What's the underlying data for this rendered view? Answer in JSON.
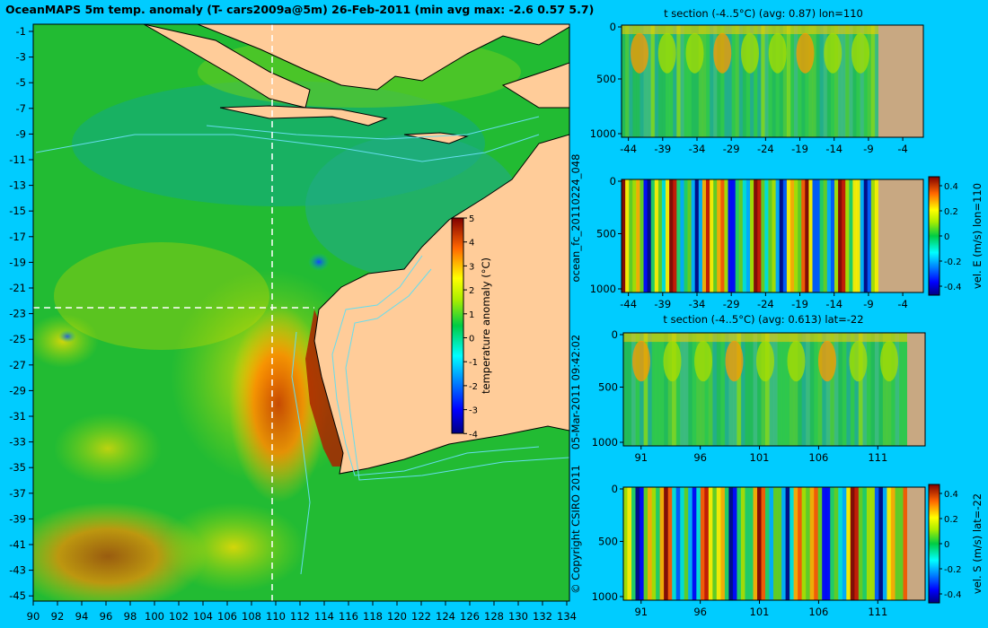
{
  "page": {
    "background": "#00ccff",
    "land_color": "#ffcc99",
    "section_land_color": "#c8a882"
  },
  "map": {
    "title": "OceanMAPS 5m temp. anomaly (T- cars2009a@5m) 26-Feb-2011 (min avg max: -2.6 0.57 5.7)",
    "lon_ticks": [
      "90",
      "92",
      "94",
      "96",
      "98",
      "100",
      "102",
      "104",
      "106",
      "108",
      "110",
      "112",
      "114",
      "116",
      "118",
      "120",
      "122",
      "124",
      "126",
      "128",
      "130",
      "132",
      "134"
    ],
    "lat_ticks": [
      "-1",
      "-3",
      "-5",
      "-7",
      "-9",
      "-11",
      "-13",
      "-15",
      "-17",
      "-19",
      "-21",
      "-23",
      "-25",
      "-27",
      "-29",
      "-31",
      "-33",
      "-35",
      "-37",
      "-39",
      "-41",
      "-43",
      "-45"
    ],
    "crosshair": {
      "lon": 110,
      "lat": -22
    },
    "colorbar": {
      "label": "temperature anomaly (°C)",
      "ticks": [
        "5",
        "4",
        "3",
        "2",
        "1",
        "0",
        "-1",
        "-2",
        "-3",
        "-4"
      ]
    }
  },
  "side_text": {
    "forecast_id": "ocean_fc_20110224_048",
    "timestamp": "05-Mar-2011 09:42:02",
    "copyright": "© Copyright CSIRO 2011"
  },
  "chart_data": [
    {
      "type": "heatmap",
      "title": "t section (-4..5°C) (avg: 0.87) lon=110",
      "x_ticks": [
        "-44",
        "-39",
        "-34",
        "-29",
        "-24",
        "-19",
        "-14",
        "-9",
        "-4"
      ],
      "y_ticks": [
        "0",
        "500",
        "1000"
      ],
      "xlim": [
        -45,
        -1
      ],
      "ylim": [
        0,
        1050
      ]
    },
    {
      "type": "heatmap",
      "title": "",
      "x_ticks": [
        "-44",
        "-39",
        "-34",
        "-29",
        "-24",
        "-19",
        "-14",
        "-9",
        "-4"
      ],
      "y_ticks": [
        "0",
        "500",
        "1000"
      ],
      "colorbar": {
        "label": "vel. E (m/s) lon=110",
        "ticks": [
          "0.4",
          "0.2",
          "0",
          "-0.2",
          "-0.4"
        ]
      }
    },
    {
      "type": "heatmap",
      "title": "t section (-4..5°C) (avg: 0.613) lat=-22",
      "x_ticks": [
        "91",
        "96",
        "101",
        "106",
        "111"
      ],
      "y_ticks": [
        "0",
        "500",
        "1000"
      ],
      "xlim": [
        89.5,
        114.5
      ],
      "ylim": [
        0,
        1050
      ]
    },
    {
      "type": "heatmap",
      "title": "",
      "x_ticks": [
        "91",
        "96",
        "101",
        "106",
        "111"
      ],
      "y_ticks": [
        "0",
        "500",
        "1000"
      ],
      "colorbar": {
        "label": "vel. S (m/s) lat=-22",
        "ticks": [
          "0.4",
          "0.2",
          "0",
          "-0.2",
          "-0.4"
        ]
      }
    }
  ]
}
